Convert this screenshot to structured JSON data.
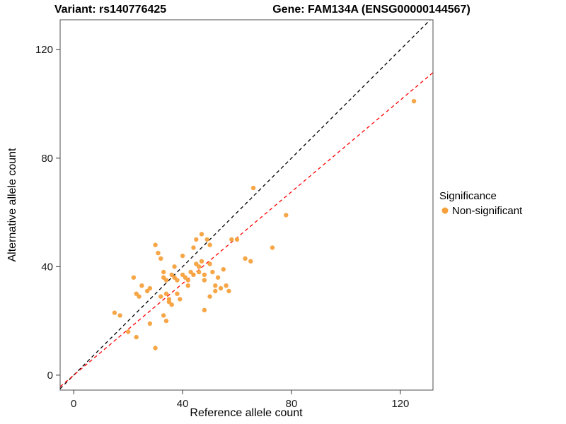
{
  "chart_data": {
    "type": "scatter",
    "title_left": "Variant: rs140776425",
    "title_right": "Gene: FAM134A (ENSG00000144567)",
    "xlabel": "Reference allele count",
    "ylabel": "Alternative allele count",
    "xlim": [
      -5,
      132
    ],
    "ylim": [
      -5.5,
      131
    ],
    "xticks": [
      0,
      40,
      80,
      120
    ],
    "yticks": [
      0,
      40,
      80,
      120
    ],
    "grid": false,
    "point_color": "#F7A13D",
    "legend": {
      "title": "Significance",
      "entries": [
        {
          "label": "Non-significant",
          "color": "#F7A13D"
        }
      ]
    },
    "lines": [
      {
        "name": "identity-line",
        "slope": 1.0,
        "intercept": 0,
        "color": "#000000",
        "dash": "5 4"
      },
      {
        "name": "fit-line",
        "slope": 0.845,
        "intercept": 0,
        "color": "#FF0000",
        "dash": "5 4"
      }
    ],
    "series": [
      {
        "name": "Non-significant",
        "points": [
          [
            15,
            23
          ],
          [
            17,
            22
          ],
          [
            20,
            16
          ],
          [
            23,
            14
          ],
          [
            28,
            19
          ],
          [
            30,
            10
          ],
          [
            33,
            22
          ],
          [
            34,
            20
          ],
          [
            22,
            36
          ],
          [
            23,
            30
          ],
          [
            24,
            29
          ],
          [
            25,
            33
          ],
          [
            27,
            31
          ],
          [
            28,
            32
          ],
          [
            30,
            48
          ],
          [
            31,
            45
          ],
          [
            32,
            43
          ],
          [
            32,
            29
          ],
          [
            33,
            38
          ],
          [
            33,
            36
          ],
          [
            34,
            35
          ],
          [
            34,
            30
          ],
          [
            35,
            28
          ],
          [
            35,
            27
          ],
          [
            36,
            26
          ],
          [
            36,
            37
          ],
          [
            37,
            36
          ],
          [
            37,
            40
          ],
          [
            38,
            35
          ],
          [
            38,
            30
          ],
          [
            39,
            28
          ],
          [
            40,
            44
          ],
          [
            40,
            37
          ],
          [
            41,
            36
          ],
          [
            42,
            35
          ],
          [
            42,
            33
          ],
          [
            43,
            38
          ],
          [
            44,
            37
          ],
          [
            44,
            47
          ],
          [
            45,
            50
          ],
          [
            45,
            41
          ],
          [
            46,
            40
          ],
          [
            46,
            38
          ],
          [
            47,
            52
          ],
          [
            47,
            42
          ],
          [
            48,
            37
          ],
          [
            48,
            35
          ],
          [
            48,
            24
          ],
          [
            49,
            50
          ],
          [
            50,
            48
          ],
          [
            50,
            41
          ],
          [
            50,
            29
          ],
          [
            51,
            38
          ],
          [
            52,
            33
          ],
          [
            52,
            31
          ],
          [
            53,
            36
          ],
          [
            54,
            32
          ],
          [
            55,
            39
          ],
          [
            56,
            33
          ],
          [
            57,
            31
          ],
          [
            58,
            50
          ],
          [
            60,
            50
          ],
          [
            63,
            43
          ],
          [
            65,
            42
          ],
          [
            66,
            69
          ],
          [
            73,
            47
          ],
          [
            78,
            59
          ],
          [
            125,
            101
          ]
        ]
      }
    ]
  }
}
